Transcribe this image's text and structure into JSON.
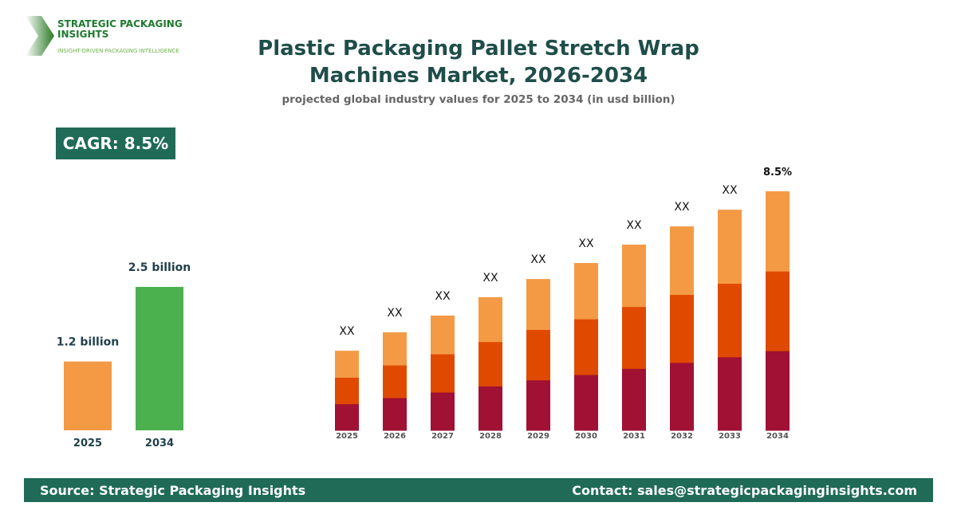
{
  "logo": {
    "name": "STRATEGIC PACKAGING INSIGHTS",
    "tagline": "INSIGHT-DRIVEN PACKAGING INTELLIGENCE"
  },
  "header": {
    "title": "Plastic Packaging Pallet Stretch Wrap Machines Market, 2026-2034",
    "subtitle": "projected global industry values for 2025 to 2034 (in usd billion)"
  },
  "cagr_badge": "CAGR: 8.5%",
  "footer": {
    "source": "Source: Strategic Packaging Insights",
    "contact": "Contact: sales@strategicpackaginginsights.com"
  },
  "chart_data": [
    {
      "type": "bar",
      "categories": [
        "2025",
        "2034"
      ],
      "values": [
        1.2,
        2.5
      ],
      "data_labels": [
        "1.2 billion",
        "2.5 billion"
      ],
      "colors": [
        "#f49a45",
        "#4bb14f"
      ]
    },
    {
      "type": "bar",
      "stacked": true,
      "categories": [
        "2025",
        "2026",
        "2027",
        "2028",
        "2029",
        "2030",
        "2031",
        "2032",
        "2033",
        "2034"
      ],
      "totals_relative": [
        33.3,
        41,
        48,
        55.7,
        63.3,
        70,
        77.7,
        85.3,
        92.3,
        100
      ],
      "segment_share": [
        0.333,
        0.333,
        0.334
      ],
      "segment_colors": [
        "#a01133",
        "#e04a00",
        "#f49a45"
      ],
      "data_labels": [
        "XX",
        "XX",
        "XX",
        "XX",
        "XX",
        "XX",
        "XX",
        "XX",
        "XX",
        "8.5%"
      ]
    }
  ]
}
